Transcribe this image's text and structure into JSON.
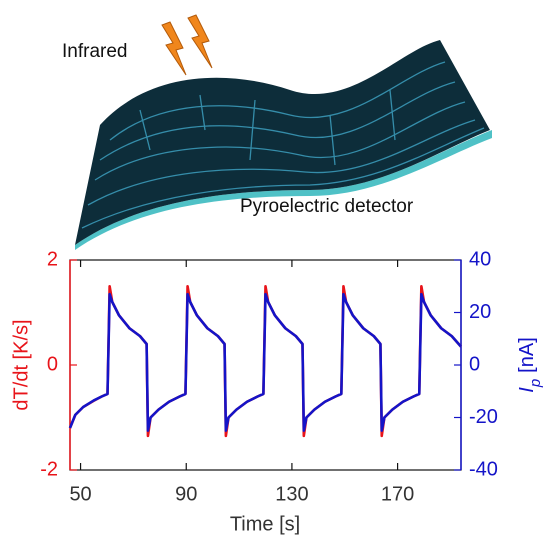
{
  "chart_data": {
    "type": "line",
    "annotations": [
      "Infrared",
      "Pyroelectric detector"
    ],
    "xlabel": "Time [s]",
    "ylabel": "dT/dt [K/s]",
    "y2label": {
      "symbol": "I",
      "subscript": "p",
      "unit": "[nA]"
    },
    "xlim": [
      46,
      194
    ],
    "xticks": [
      50,
      90,
      130,
      170
    ],
    "ylim": [
      -2,
      2
    ],
    "yticks": [
      -2,
      0,
      2
    ],
    "y2lim": [
      -40,
      40
    ],
    "y2ticks": [
      -40,
      -20,
      0,
      20,
      40
    ],
    "x": [
      46,
      48,
      51,
      55,
      58,
      60.2,
      61,
      62,
      64.5,
      68.5,
      72.5,
      75,
      75.5,
      76.5,
      79.5,
      83.5,
      87.5,
      89.7,
      90.5,
      91.5,
      94,
      98,
      102,
      104.5,
      105,
      106,
      109,
      113,
      117,
      119.2,
      120,
      121,
      123.5,
      127.5,
      131.5,
      134,
      134.5,
      135.5,
      138.5,
      142.5,
      146.5,
      148.7,
      149.5,
      150.5,
      153,
      157,
      161,
      163.5,
      164,
      165,
      168,
      172,
      176,
      178.2,
      179,
      180,
      182.5,
      186.5,
      190.5,
      194
    ],
    "series": [
      {
        "name": "dT/dt",
        "color": "#e8141a",
        "axis": "y",
        "values": [
          -1.2,
          -0.95,
          -0.8,
          -0.68,
          -0.6,
          -0.55,
          1.5,
          1.2,
          0.95,
          0.7,
          0.55,
          0.4,
          -1.35,
          -1.0,
          -0.85,
          -0.7,
          -0.6,
          -0.55,
          1.5,
          1.2,
          0.95,
          0.7,
          0.55,
          0.4,
          -1.35,
          -1.0,
          -0.85,
          -0.7,
          -0.6,
          -0.55,
          1.5,
          1.2,
          0.95,
          0.7,
          0.55,
          0.4,
          -1.35,
          -1.0,
          -0.85,
          -0.7,
          -0.6,
          -0.55,
          1.5,
          1.2,
          0.95,
          0.7,
          0.55,
          0.4,
          -1.35,
          -1.0,
          -0.85,
          -0.7,
          -0.6,
          -0.55,
          1.5,
          1.2,
          0.95,
          0.7,
          0.55,
          0.35
        ]
      },
      {
        "name": "Ip",
        "color": "#1414c8",
        "axis": "y2",
        "values": [
          -24,
          -19,
          -16,
          -13.5,
          -12,
          -11,
          27,
          24,
          19,
          14,
          11,
          8,
          -25,
          -20,
          -17,
          -14,
          -12,
          -11,
          27,
          24,
          19,
          14,
          11,
          8,
          -25,
          -20,
          -17,
          -14,
          -12,
          -11,
          27,
          24,
          19,
          14,
          11,
          8,
          -25,
          -20,
          -17,
          -14,
          -12,
          -11,
          27,
          24,
          19,
          14,
          11,
          8,
          -25,
          -20,
          -17,
          -14,
          -12,
          -11,
          27,
          24,
          19,
          14,
          11,
          7
        ]
      }
    ]
  }
}
